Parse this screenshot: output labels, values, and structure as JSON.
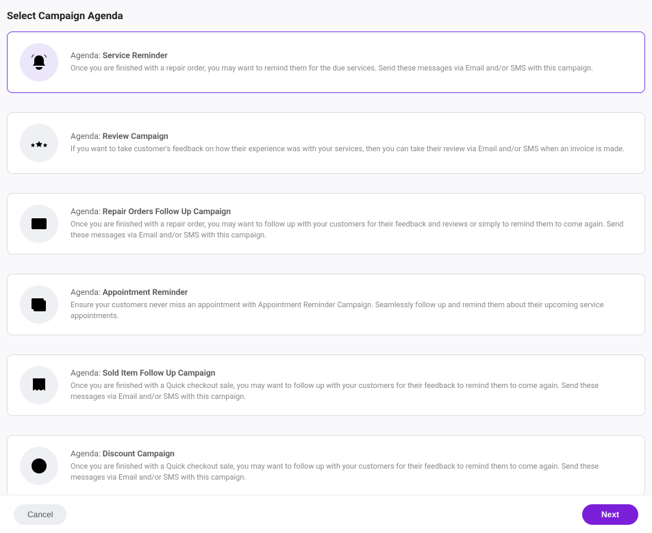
{
  "page": {
    "title": "Select Campaign Agenda"
  },
  "agenda_label_prefix": "Agenda:",
  "agendas": [
    {
      "id": "service-reminder",
      "icon": "bell-icon",
      "title": "Service Reminder",
      "description": "Once you are finished with a repair order, you may want to remind them for the due services. Send these messages via Email and/or SMS with this campaign.",
      "selected": true
    },
    {
      "id": "review-campaign",
      "icon": "stars-icon",
      "title": "Review Campaign",
      "description": "If you want to take customer's feedback on how their experience was with your services, then you can take their review via Email and/or SMS when an invoice is made.",
      "selected": false
    },
    {
      "id": "repair-followup",
      "icon": "list-icon",
      "title": "Repair Orders Follow Up Campaign",
      "description": "Once you are finished with a repair order, you may want to follow up with your customers for their feedback and reviews or simply to remind them to come again. Send these messages via Email and/or SMS with this campaign.",
      "selected": false
    },
    {
      "id": "appointment-reminder",
      "icon": "calendar-icon",
      "title": "Appointment Reminder",
      "description": "Ensure your customers never miss an appointment with Appointment Reminder Campaign. Seamlessly follow up and remind them about their upcoming service appointments.",
      "selected": false
    },
    {
      "id": "sold-item-followup",
      "icon": "receipt-icon",
      "title": "Sold Item Follow Up Campaign",
      "description": "Once you are finished with a Quick checkout sale, you may want to follow up with your customers for their feedback to remind them to come again. Send these messages via Email and/or SMS with this campaign.",
      "selected": false
    },
    {
      "id": "discount-campaign",
      "icon": "dollar-icon",
      "title": "Discount Campaign",
      "description": "Once you are finished with a Quick checkout sale, you may want to follow up with your customers for their feedback to remind them to come again. Send these messages via Email and/or SMS with this campaign.",
      "selected": false
    }
  ],
  "footer": {
    "cancel_label": "Cancel",
    "next_label": "Next"
  },
  "colors": {
    "primary": "#7c3aed",
    "primary_button": "#7c1fd8",
    "selected_icon_bg": "#ece6fa",
    "icon_bg": "#eef0f3",
    "icon_stroke": "#9ca0aa",
    "card_border": "#ddd",
    "page_bg": "#f9f9fb",
    "text_title": "#222",
    "text_label": "#666",
    "text_desc": "#888",
    "cancel_bg": "#eceef1"
  }
}
